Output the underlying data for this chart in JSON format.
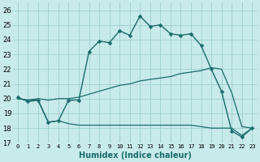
{
  "title": "",
  "xlabel": "Humidex (Indice chaleur)",
  "bg_color": "#c8eaea",
  "line_color": "#1a6b6b",
  "x": [
    0,
    1,
    2,
    3,
    4,
    5,
    6,
    7,
    8,
    9,
    10,
    11,
    12,
    13,
    14,
    15,
    16,
    17,
    18,
    19,
    20,
    21,
    22,
    23
  ],
  "y_main": [
    20.1,
    19.8,
    19.9,
    18.4,
    18.5,
    19.9,
    19.9,
    23.2,
    23.9,
    23.8,
    24.6,
    24.3,
    25.6,
    24.9,
    25.0,
    24.4,
    24.3,
    24.4,
    23.6,
    22.0,
    20.5,
    17.8,
    17.4,
    18.0
  ],
  "y_upper": [
    20.0,
    19.9,
    20.0,
    19.9,
    20.0,
    20.0,
    20.1,
    20.3,
    20.5,
    20.7,
    20.9,
    21.0,
    21.2,
    21.3,
    21.4,
    21.5,
    21.7,
    21.8,
    21.9,
    22.1,
    22.0,
    20.4,
    18.1,
    18.0
  ],
  "y_lower": [
    20.0,
    19.9,
    19.9,
    18.4,
    18.5,
    18.3,
    18.2,
    18.2,
    18.2,
    18.2,
    18.2,
    18.2,
    18.2,
    18.2,
    18.2,
    18.2,
    18.2,
    18.2,
    18.1,
    18.0,
    18.0,
    18.0,
    17.5,
    18.0
  ],
  "ylim": [
    17,
    26.5
  ],
  "yticks": [
    17,
    18,
    19,
    20,
    21,
    22,
    23,
    24,
    25,
    26
  ],
  "xlim": [
    -0.5,
    23.5
  ],
  "grid_color": "#a0cfcf"
}
